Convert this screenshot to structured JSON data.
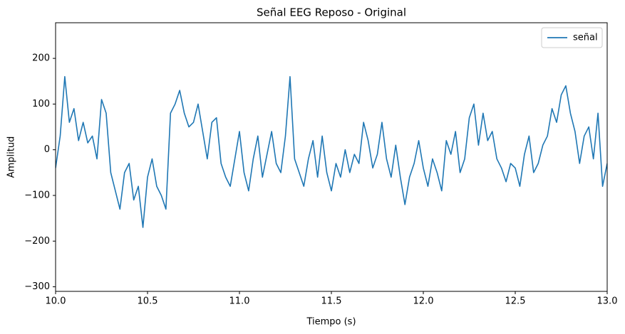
{
  "chart_data": {
    "type": "line",
    "title": "Señal EEG Reposo - Original",
    "xlabel": "Tiempo (s)",
    "ylabel": "Amplitud",
    "xlim": [
      10,
      13
    ],
    "ylim": [
      -310,
      278
    ],
    "xticks": [
      {
        "value": 10,
        "label": "10.0"
      },
      {
        "value": 10.5,
        "label": "10.5"
      },
      {
        "value": 11,
        "label": "11.0"
      },
      {
        "value": 11.5,
        "label": "11.5"
      },
      {
        "value": 12,
        "label": "12.0"
      },
      {
        "value": 12.5,
        "label": "12.5"
      },
      {
        "value": 13,
        "label": "13.0"
      }
    ],
    "yticks": [
      {
        "value": -300,
        "label": "−300"
      },
      {
        "value": -200,
        "label": "−200"
      },
      {
        "value": -100,
        "label": "−100"
      },
      0,
      100,
      200
    ],
    "legend": "upper right",
    "x": [
      10,
      10.025,
      10.05,
      10.075,
      10.1,
      10.125,
      10.15,
      10.175,
      10.2,
      10.225,
      10.25,
      10.275,
      10.3,
      10.325,
      10.35,
      10.375,
      10.4,
      10.425,
      10.45,
      10.475,
      10.5,
      10.525,
      10.55,
      10.575,
      10.6,
      10.625,
      10.65,
      10.675,
      10.7,
      10.725,
      10.75,
      10.775,
      10.8,
      10.825,
      10.85,
      10.875,
      10.9,
      10.925,
      10.95,
      10.975,
      11,
      11.025,
      11.05,
      11.075,
      11.1,
      11.125,
      11.15,
      11.175,
      11.2,
      11.225,
      11.25,
      11.275,
      11.3,
      11.325,
      11.35,
      11.375,
      11.4,
      11.425,
      11.45,
      11.475,
      11.5,
      11.525,
      11.55,
      11.575,
      11.6,
      11.625,
      11.65,
      11.675,
      11.7,
      11.725,
      11.75,
      11.775,
      11.8,
      11.825,
      11.85,
      11.875,
      11.9,
      11.925,
      11.95,
      11.975,
      12,
      12.025,
      12.05,
      12.075,
      12.1,
      12.125,
      12.15,
      12.175,
      12.2,
      12.225,
      12.25,
      12.275,
      12.3,
      12.325,
      12.35,
      12.375,
      12.4,
      12.425,
      12.45,
      12.475,
      12.5,
      12.525,
      12.55,
      12.575,
      12.6,
      12.625,
      12.65,
      12.675,
      12.7,
      12.725,
      12.75,
      12.775,
      12.8,
      12.825,
      12.85,
      12.875,
      12.9,
      12.925,
      12.95,
      12.975,
      13
    ],
    "series": [
      {
        "name": "señal",
        "color": "#1f77b4",
        "values": [
          -40,
          30,
          160,
          60,
          90,
          20,
          60,
          15,
          30,
          -20,
          110,
          80,
          -50,
          -90,
          -130,
          -50,
          -30,
          -110,
          -80,
          -170,
          -60,
          -20,
          -80,
          -100,
          -130,
          80,
          100,
          130,
          80,
          50,
          60,
          100,
          40,
          -20,
          60,
          70,
          -30,
          -60,
          -80,
          -20,
          40,
          -50,
          -90,
          -20,
          30,
          -60,
          -10,
          40,
          -30,
          -50,
          30,
          160,
          -20,
          -50,
          -80,
          -20,
          20,
          -60,
          30,
          -50,
          -90,
          -30,
          -60,
          0,
          -50,
          -10,
          -30,
          60,
          20,
          -40,
          -10,
          60,
          -20,
          -60,
          10,
          -60,
          -120,
          -60,
          -30,
          20,
          -40,
          -80,
          -20,
          -50,
          -90,
          20,
          -10,
          40,
          -50,
          -20,
          70,
          100,
          10,
          80,
          20,
          40,
          -20,
          -40,
          -70,
          -30,
          -40,
          -80,
          -10,
          30,
          -50,
          -30,
          10,
          30,
          90,
          60,
          120,
          140,
          80,
          40,
          -30,
          30,
          50,
          -20,
          80,
          -80,
          -30
        ]
      }
    ]
  }
}
